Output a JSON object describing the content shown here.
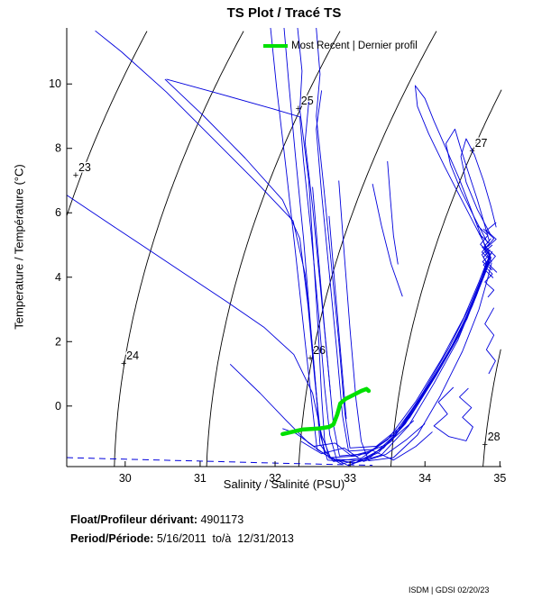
{
  "title": "TS Plot / Tracé TS",
  "legend": {
    "label": "Most Recent | Dernier profil",
    "color": "#00e000"
  },
  "float_info": {
    "label": "Float/Profileur dérivant:",
    "value": " 4901173"
  },
  "period_info": {
    "label": "Period/Période:",
    "value": " 5/16/2011  to/à  12/31/2013"
  },
  "watermark": "ISDM | GDSI 02/20/23",
  "chart_data": {
    "type": "line",
    "title": "TS Plot / Tracé TS",
    "xlabel": "Salinity / Salinité (PSU)",
    "ylabel": "Temperature / Température (°C)",
    "xlim": [
      29.22,
      35.02
    ],
    "ylim": [
      -1.88,
      11.74
    ],
    "xticks": [
      30,
      31,
      32,
      33,
      34,
      35
    ],
    "yticks": [
      0,
      2,
      4,
      6,
      8,
      10
    ],
    "grid": false,
    "legend_position": "top-right-inside",
    "colors": {
      "profile": "#0000dd",
      "most_recent": "#00e000",
      "contour": "#000000"
    },
    "isopycnals": [
      {
        "value": 23,
        "label_s": 29.34,
        "label_t": 7.18
      },
      {
        "value": 24,
        "label_s": 29.98,
        "label_t": 1.34
      },
      {
        "value": 25,
        "label_s": 32.31,
        "label_t": 9.25
      },
      {
        "value": 26,
        "label_s": 32.47,
        "label_t": 1.51
      },
      {
        "value": 27,
        "label_s": 34.63,
        "label_t": 7.94
      },
      {
        "value": 28,
        "label_s": 34.8,
        "label_t": -1.18
      }
    ],
    "freezing_line": [
      [
        29.22,
        -1.6
      ],
      [
        30.0,
        -1.65
      ],
      [
        31.0,
        -1.71
      ],
      [
        32.0,
        -1.77
      ],
      [
        32.7,
        -1.81
      ],
      [
        33.3,
        -1.84
      ]
    ],
    "most_recent_profile": [
      [
        32.1,
        -0.87
      ],
      [
        32.36,
        -0.73
      ],
      [
        32.58,
        -0.7
      ],
      [
        32.72,
        -0.65
      ],
      [
        32.78,
        -0.57
      ],
      [
        32.83,
        -0.26
      ],
      [
        32.87,
        0.08
      ],
      [
        32.94,
        0.22
      ],
      [
        33.06,
        0.36
      ],
      [
        33.15,
        0.47
      ],
      [
        33.22,
        0.53
      ],
      [
        33.25,
        0.47
      ]
    ],
    "profiles": [
      [
        [
          32.3,
          11.74
        ],
        [
          32.36,
          10.4
        ],
        [
          32.33,
          9.2
        ],
        [
          32.45,
          7.0
        ],
        [
          32.52,
          4.4
        ],
        [
          32.58,
          2.2
        ],
        [
          32.62,
          0.3
        ],
        [
          32.66,
          -1.05
        ],
        [
          32.72,
          -1.62
        ],
        [
          33.05,
          -1.78
        ],
        [
          33.42,
          -1.52
        ],
        [
          33.78,
          -0.62
        ],
        [
          34.12,
          0.7
        ],
        [
          34.44,
          2.05
        ],
        [
          34.66,
          3.3
        ],
        [
          34.79,
          4.15
        ],
        [
          34.86,
          4.7
        ],
        [
          34.79,
          4.95
        ],
        [
          34.88,
          5.2
        ]
      ],
      [
        [
          32.12,
          11.74
        ],
        [
          32.18,
          10.1
        ],
        [
          32.27,
          7.8
        ],
        [
          32.38,
          5.2
        ],
        [
          32.47,
          2.6
        ],
        [
          32.55,
          0.4
        ],
        [
          32.6,
          -1.2
        ],
        [
          32.78,
          -1.72
        ],
        [
          33.15,
          -1.62
        ],
        [
          33.5,
          -1.05
        ],
        [
          33.88,
          0.15
        ],
        [
          34.22,
          1.45
        ],
        [
          34.52,
          2.75
        ],
        [
          34.72,
          3.85
        ],
        [
          34.82,
          4.45
        ],
        [
          34.76,
          4.7
        ],
        [
          34.85,
          4.9
        ]
      ],
      [
        [
          31.94,
          11.74
        ],
        [
          32.02,
          9.9
        ],
        [
          32.15,
          7.3
        ],
        [
          32.28,
          4.6
        ],
        [
          32.4,
          2.0
        ],
        [
          32.5,
          -0.1
        ],
        [
          32.56,
          -1.35
        ],
        [
          32.88,
          -1.8
        ],
        [
          33.28,
          -1.58
        ],
        [
          33.62,
          -0.85
        ],
        [
          33.98,
          0.45
        ],
        [
          34.32,
          1.8
        ],
        [
          34.6,
          3.1
        ],
        [
          34.76,
          4.0
        ],
        [
          34.84,
          4.55
        ],
        [
          34.9,
          4.8
        ]
      ],
      [
        [
          30.55,
          10.15
        ],
        [
          31.25,
          9.7
        ],
        [
          31.98,
          9.22
        ],
        [
          32.33,
          8.98
        ],
        [
          32.38,
          7.6
        ],
        [
          32.48,
          5.4
        ],
        [
          32.58,
          2.9
        ],
        [
          32.66,
          0.6
        ],
        [
          32.73,
          -0.9
        ],
        [
          32.82,
          -1.65
        ],
        [
          33.18,
          -1.7
        ],
        [
          33.55,
          -1.1
        ],
        [
          33.92,
          0.1
        ],
        [
          34.26,
          1.4
        ],
        [
          34.56,
          2.7
        ],
        [
          34.74,
          3.8
        ],
        [
          34.84,
          4.4
        ],
        [
          34.78,
          4.62
        ],
        [
          34.87,
          4.85
        ]
      ],
      [
        [
          29.6,
          11.65
        ],
        [
          29.95,
          11.0
        ],
        [
          30.55,
          9.75
        ],
        [
          31.15,
          8.35
        ],
        [
          31.75,
          6.95
        ],
        [
          32.24,
          5.75
        ],
        [
          32.4,
          4.1
        ],
        [
          32.5,
          1.8
        ],
        [
          32.58,
          -0.4
        ],
        [
          32.66,
          -1.5
        ],
        [
          32.98,
          -1.85
        ],
        [
          33.38,
          -1.45
        ],
        [
          33.74,
          -0.55
        ],
        [
          34.08,
          0.75
        ],
        [
          34.42,
          2.1
        ],
        [
          34.66,
          3.35
        ],
        [
          34.8,
          4.2
        ],
        [
          34.87,
          4.65
        ]
      ],
      [
        [
          30.53,
          10.15
        ],
        [
          31.05,
          9.0
        ],
        [
          31.6,
          7.7
        ],
        [
          32.1,
          6.4
        ],
        [
          32.33,
          5.2
        ],
        [
          32.44,
          3.1
        ],
        [
          32.53,
          0.8
        ],
        [
          32.61,
          -0.95
        ],
        [
          32.7,
          -1.68
        ],
        [
          33.08,
          -1.75
        ],
        [
          33.45,
          -1.3
        ],
        [
          33.8,
          -0.35
        ],
        [
          34.15,
          0.95
        ],
        [
          34.47,
          2.25
        ],
        [
          34.69,
          3.45
        ],
        [
          34.81,
          4.25
        ],
        [
          34.88,
          4.6
        ]
      ],
      [
        [
          29.22,
          6.55
        ],
        [
          29.7,
          5.8
        ],
        [
          30.25,
          4.95
        ],
        [
          30.8,
          4.1
        ],
        [
          31.35,
          3.25
        ],
        [
          31.85,
          2.45
        ],
        [
          32.25,
          1.6
        ],
        [
          32.5,
          0.4
        ],
        [
          32.62,
          -0.9
        ],
        [
          32.74,
          -1.6
        ],
        [
          33.1,
          -1.55
        ],
        [
          33.48,
          -1.2
        ],
        [
          33.85,
          -0.45
        ]
      ],
      [
        [
          32.45,
          9.45
        ],
        [
          32.4,
          8.2
        ],
        [
          32.5,
          6.2
        ],
        [
          32.6,
          3.8
        ],
        [
          32.7,
          1.4
        ],
        [
          32.78,
          -0.6
        ],
        [
          32.86,
          -1.55
        ],
        [
          33.22,
          -1.48
        ],
        [
          33.58,
          -0.9
        ],
        [
          33.95,
          0.3
        ],
        [
          34.3,
          1.6
        ],
        [
          34.58,
          2.9
        ],
        [
          34.76,
          3.95
        ],
        [
          34.85,
          4.5
        ]
      ],
      [
        [
          32.62,
          9.8
        ],
        [
          32.55,
          8.6
        ],
        [
          32.62,
          6.6
        ],
        [
          32.72,
          4.2
        ],
        [
          32.82,
          1.8
        ],
        [
          32.9,
          -0.3
        ],
        [
          32.98,
          -1.4
        ],
        [
          33.32,
          -1.35
        ],
        [
          33.68,
          -0.7
        ],
        [
          34.02,
          0.55
        ],
        [
          34.36,
          1.85
        ],
        [
          34.63,
          3.1
        ],
        [
          34.79,
          4.05
        ],
        [
          34.87,
          4.55
        ],
        [
          34.8,
          4.8
        ],
        [
          34.9,
          5.0
        ]
      ],
      [
        [
          32.85,
          7.0
        ],
        [
          32.92,
          4.8
        ],
        [
          33.0,
          2.4
        ],
        [
          33.08,
          0.2
        ],
        [
          33.15,
          -1.1
        ],
        [
          33.25,
          -1.7
        ],
        [
          33.58,
          -1.6
        ],
        [
          33.9,
          -0.9
        ],
        [
          34.2,
          0.3
        ],
        [
          34.5,
          1.7
        ],
        [
          34.72,
          3.0
        ],
        [
          34.83,
          3.9
        ],
        [
          34.89,
          4.45
        ]
      ],
      [
        [
          34.86,
          4.75
        ],
        [
          34.68,
          5.55
        ],
        [
          34.48,
          6.45
        ],
        [
          34.26,
          7.45
        ],
        [
          34.05,
          8.45
        ],
        [
          33.9,
          9.3
        ],
        [
          33.87,
          9.95
        ],
        [
          34.0,
          9.55
        ],
        [
          34.12,
          8.85
        ],
        [
          34.28,
          8.0
        ],
        [
          34.45,
          7.1
        ],
        [
          34.6,
          6.2
        ],
        [
          34.73,
          5.4
        ],
        [
          34.82,
          4.85
        ]
      ],
      [
        [
          34.84,
          5.05
        ],
        [
          34.66,
          5.85
        ],
        [
          34.48,
          6.7
        ],
        [
          34.34,
          7.5
        ],
        [
          34.28,
          8.15
        ],
        [
          34.4,
          8.6
        ],
        [
          34.47,
          8.05
        ],
        [
          34.58,
          7.25
        ],
        [
          34.7,
          6.4
        ],
        [
          34.8,
          5.6
        ],
        [
          34.86,
          5.1
        ]
      ],
      [
        [
          34.88,
          5.3
        ],
        [
          34.7,
          6.1
        ],
        [
          34.55,
          6.95
        ],
        [
          34.48,
          7.75
        ],
        [
          34.55,
          8.3
        ],
        [
          34.66,
          7.8
        ],
        [
          34.78,
          7.0
        ],
        [
          34.88,
          6.2
        ],
        [
          34.95,
          5.55
        ]
      ],
      [
        [
          34.38,
          0.58
        ],
        [
          34.18,
          0.12
        ],
        [
          34.3,
          -0.25
        ],
        [
          34.12,
          -0.62
        ],
        [
          34.32,
          -0.95
        ],
        [
          34.55,
          -1.08
        ],
        [
          34.64,
          -0.65
        ],
        [
          34.5,
          -0.35
        ],
        [
          34.62,
          -0.05
        ],
        [
          34.46,
          0.28
        ],
        [
          34.58,
          0.55
        ]
      ],
      [
        [
          34.92,
          3.05
        ],
        [
          34.8,
          2.55
        ],
        [
          34.92,
          2.2
        ],
        [
          34.82,
          1.75
        ],
        [
          34.94,
          1.4
        ],
        [
          34.85,
          1.0
        ]
      ],
      [
        [
          32.1,
          -0.7
        ],
        [
          32.28,
          -0.85
        ],
        [
          32.52,
          -1.25
        ],
        [
          32.8,
          -1.15
        ],
        [
          33.02,
          -1.55
        ],
        [
          33.3,
          -1.38
        ],
        [
          33.58,
          -1.68
        ],
        [
          33.88,
          -1.25
        ],
        [
          34.1,
          -0.8
        ]
      ],
      [
        [
          32.35,
          -1.1
        ],
        [
          32.62,
          -1.48
        ],
        [
          32.92,
          -1.3
        ],
        [
          33.18,
          -1.72
        ],
        [
          33.48,
          -1.5
        ],
        [
          33.75,
          -1.05
        ],
        [
          34.0,
          -0.55
        ]
      ],
      [
        [
          32.5,
          6.8
        ],
        [
          32.58,
          4.6
        ],
        [
          32.66,
          2.4
        ],
        [
          32.74,
          0.4
        ]
      ],
      [
        [
          32.72,
          5.9
        ],
        [
          32.8,
          3.7
        ],
        [
          32.88,
          1.5
        ],
        [
          32.95,
          -0.4
        ]
      ],
      [
        [
          32.55,
          11.74
        ],
        [
          32.6,
          10.3
        ],
        [
          32.55,
          9.0
        ],
        [
          32.65,
          6.8
        ],
        [
          32.75,
          4.4
        ],
        [
          32.85,
          2.0
        ],
        [
          32.93,
          -0.2
        ],
        [
          33.0,
          -1.3
        ],
        [
          33.35,
          -1.25
        ],
        [
          33.7,
          -0.6
        ],
        [
          34.05,
          0.65
        ],
        [
          34.38,
          1.95
        ],
        [
          34.64,
          3.2
        ],
        [
          34.8,
          4.1
        ],
        [
          34.88,
          4.6
        ]
      ],
      [
        [
          34.76,
          4.95
        ],
        [
          34.88,
          4.62
        ],
        [
          34.78,
          4.38
        ],
        [
          34.9,
          4.1
        ],
        [
          34.8,
          3.85
        ],
        [
          34.92,
          3.6
        ],
        [
          34.84,
          3.38
        ]
      ],
      [
        [
          34.72,
          5.35
        ],
        [
          34.86,
          5.05
        ],
        [
          34.76,
          4.78
        ],
        [
          34.89,
          4.5
        ],
        [
          34.79,
          4.25
        ],
        [
          34.91,
          3.98
        ]
      ],
      [
        [
          34.7,
          5.6
        ],
        [
          34.84,
          5.3
        ],
        [
          34.74,
          5.02
        ],
        [
          34.87,
          4.72
        ],
        [
          34.77,
          4.48
        ],
        [
          34.9,
          4.22
        ]
      ],
      [
        [
          34.78,
          5.5
        ],
        [
          34.92,
          5.2
        ],
        [
          34.82,
          4.92
        ],
        [
          34.94,
          4.65
        ],
        [
          34.85,
          4.4
        ],
        [
          34.96,
          4.15
        ]
      ],
      [
        [
          34.95,
          5.7
        ],
        [
          34.82,
          5.45
        ],
        [
          34.95,
          5.18
        ],
        [
          34.84,
          4.95
        ]
      ],
      [
        [
          31.4,
          1.3
        ],
        [
          31.8,
          0.4
        ],
        [
          32.15,
          -0.45
        ],
        [
          32.45,
          -1.15
        ],
        [
          32.7,
          -1.55
        ]
      ],
      [
        [
          33.5,
          7.6
        ],
        [
          33.54,
          6.4
        ],
        [
          33.58,
          5.3
        ],
        [
          33.64,
          4.4
        ]
      ],
      [
        [
          33.3,
          6.9
        ],
        [
          33.42,
          5.6
        ],
        [
          33.55,
          4.4
        ],
        [
          33.7,
          3.4
        ]
      ]
    ]
  }
}
